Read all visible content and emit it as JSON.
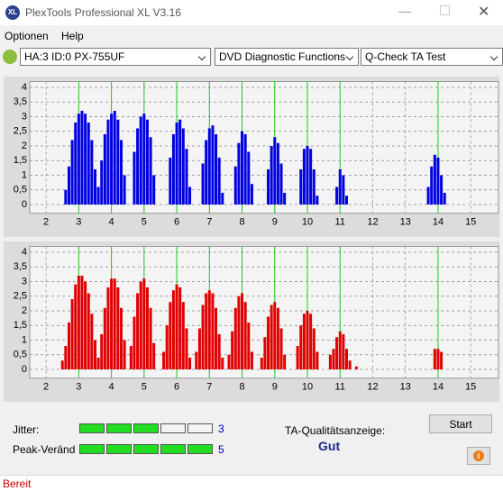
{
  "window": {
    "title": "PlexTools Professional XL V3.16"
  },
  "menu": [
    "Optionen",
    "Help"
  ],
  "toolbar": {
    "drive": "HA:3 ID:0  PX-755UF",
    "function": "DVD Diagnostic Functions",
    "test": "Q-Check TA Test"
  },
  "chart_data": [
    {
      "type": "bar",
      "color": "#0000e0",
      "x": [
        2.6,
        2.7,
        2.8,
        2.9,
        3.0,
        3.1,
        3.2,
        3.3,
        3.4,
        3.5,
        3.6,
        3.7,
        3.8,
        3.9,
        4.0,
        4.1,
        4.2,
        4.3,
        4.4,
        4.7,
        4.8,
        4.9,
        5.0,
        5.1,
        5.2,
        5.3,
        5.8,
        5.9,
        6.0,
        6.1,
        6.2,
        6.3,
        6.4,
        6.8,
        6.9,
        7.0,
        7.1,
        7.2,
        7.3,
        7.4,
        7.8,
        7.9,
        8.0,
        8.1,
        8.2,
        8.3,
        8.8,
        8.9,
        9.0,
        9.1,
        9.2,
        9.3,
        9.8,
        9.9,
        10.0,
        10.1,
        10.2,
        10.3,
        10.9,
        11.0,
        11.1,
        11.2,
        13.7,
        13.8,
        13.9,
        14.0,
        14.1,
        14.2
      ],
      "values": [
        0.5,
        1.3,
        2.2,
        2.8,
        3.1,
        3.2,
        3.1,
        2.8,
        2.2,
        1.2,
        0.6,
        1.5,
        2.4,
        2.9,
        3.1,
        3.2,
        2.9,
        2.2,
        1.0,
        1.8,
        2.6,
        3.0,
        3.1,
        2.9,
        2.3,
        1.0,
        1.6,
        2.4,
        2.8,
        2.9,
        2.6,
        1.9,
        0.6,
        1.4,
        2.2,
        2.6,
        2.7,
        2.4,
        1.6,
        0.4,
        1.3,
        2.1,
        2.5,
        2.4,
        1.8,
        0.7,
        1.2,
        2.0,
        2.3,
        2.1,
        1.4,
        0.4,
        1.2,
        1.9,
        2.0,
        1.9,
        1.2,
        0.3,
        0.6,
        1.2,
        1.0,
        0.3,
        0.6,
        1.3,
        1.7,
        1.6,
        1.0,
        0.4
      ],
      "xlim": [
        1.5,
        15.85
      ],
      "xticks": [
        2,
        3,
        4,
        5,
        6,
        7,
        8,
        9,
        10,
        11,
        12,
        13,
        14,
        15
      ],
      "ylim": [
        -0.3,
        4.2
      ],
      "yticks": [
        0,
        {
          "value": 0.5,
          "label": "0,5"
        },
        1,
        {
          "value": 1.5,
          "label": "1,5"
        },
        2,
        {
          "value": 2.5,
          "label": "2,5"
        },
        3,
        {
          "value": 3.5,
          "label": "3,5"
        },
        4
      ],
      "grid": true,
      "reference_lines": [
        3,
        4,
        5,
        6,
        7,
        8,
        9,
        10,
        11,
        14
      ],
      "reference_color": "#22cc22"
    },
    {
      "type": "bar",
      "color": "#e00000",
      "x": [
        2.5,
        2.6,
        2.7,
        2.8,
        2.9,
        3.0,
        3.1,
        3.2,
        3.3,
        3.4,
        3.5,
        3.6,
        3.7,
        3.8,
        3.9,
        4.0,
        4.1,
        4.2,
        4.3,
        4.4,
        4.6,
        4.7,
        4.8,
        4.9,
        5.0,
        5.1,
        5.2,
        5.3,
        5.6,
        5.7,
        5.8,
        5.9,
        6.0,
        6.1,
        6.2,
        6.3,
        6.4,
        6.6,
        6.7,
        6.8,
        6.9,
        7.0,
        7.1,
        7.2,
        7.3,
        7.4,
        7.6,
        7.7,
        7.8,
        7.9,
        8.0,
        8.1,
        8.2,
        8.3,
        8.6,
        8.7,
        8.8,
        8.9,
        9.0,
        9.1,
        9.2,
        9.3,
        9.7,
        9.8,
        9.9,
        10.0,
        10.1,
        10.2,
        10.3,
        10.7,
        10.8,
        10.9,
        11.0,
        11.1,
        11.2,
        11.3,
        11.5,
        13.9,
        14.0,
        14.1
      ],
      "values": [
        0.3,
        0.8,
        1.6,
        2.4,
        2.9,
        3.2,
        3.2,
        3.0,
        2.6,
        1.9,
        1.0,
        0.4,
        1.2,
        2.1,
        2.8,
        3.1,
        3.1,
        2.8,
        2.1,
        1.0,
        0.8,
        1.8,
        2.6,
        3.0,
        3.1,
        2.8,
        2.1,
        0.9,
        0.6,
        1.5,
        2.3,
        2.7,
        2.9,
        2.8,
        2.3,
        1.4,
        0.4,
        0.6,
        1.4,
        2.2,
        2.6,
        2.7,
        2.6,
        2.1,
        1.2,
        0.4,
        0.5,
        1.3,
        2.1,
        2.5,
        2.6,
        2.3,
        1.6,
        0.6,
        0.4,
        1.1,
        1.8,
        2.2,
        2.3,
        2.1,
        1.4,
        0.5,
        0.8,
        1.5,
        1.9,
        2.0,
        1.9,
        1.4,
        0.6,
        0.5,
        0.7,
        1.1,
        1.3,
        1.2,
        0.7,
        0.3,
        0.1,
        0.7,
        0.7,
        0.6
      ],
      "xlim": [
        1.5,
        15.85
      ],
      "xticks": [
        2,
        3,
        4,
        5,
        6,
        7,
        8,
        9,
        10,
        11,
        12,
        13,
        14,
        15
      ],
      "ylim": [
        -0.3,
        4.2
      ],
      "yticks": [
        0,
        {
          "value": 0.5,
          "label": "0,5"
        },
        1,
        {
          "value": 1.5,
          "label": "1,5"
        },
        2,
        {
          "value": 2.5,
          "label": "2,5"
        },
        3,
        {
          "value": 3.5,
          "label": "3,5"
        },
        4
      ],
      "grid": true,
      "reference_lines": [
        3,
        4,
        5,
        6,
        7,
        8,
        9,
        10,
        11,
        14
      ],
      "reference_color": "#22cc22"
    }
  ],
  "panel": {
    "jitter_label": "Jitter:",
    "jitter_value": 3,
    "peak_label": "Peak-Veränd",
    "peak_value": 5,
    "quality_label": "TA-Qualitätsanzeige:",
    "quality": "Gut",
    "start": "Start"
  },
  "status": "Bereit"
}
